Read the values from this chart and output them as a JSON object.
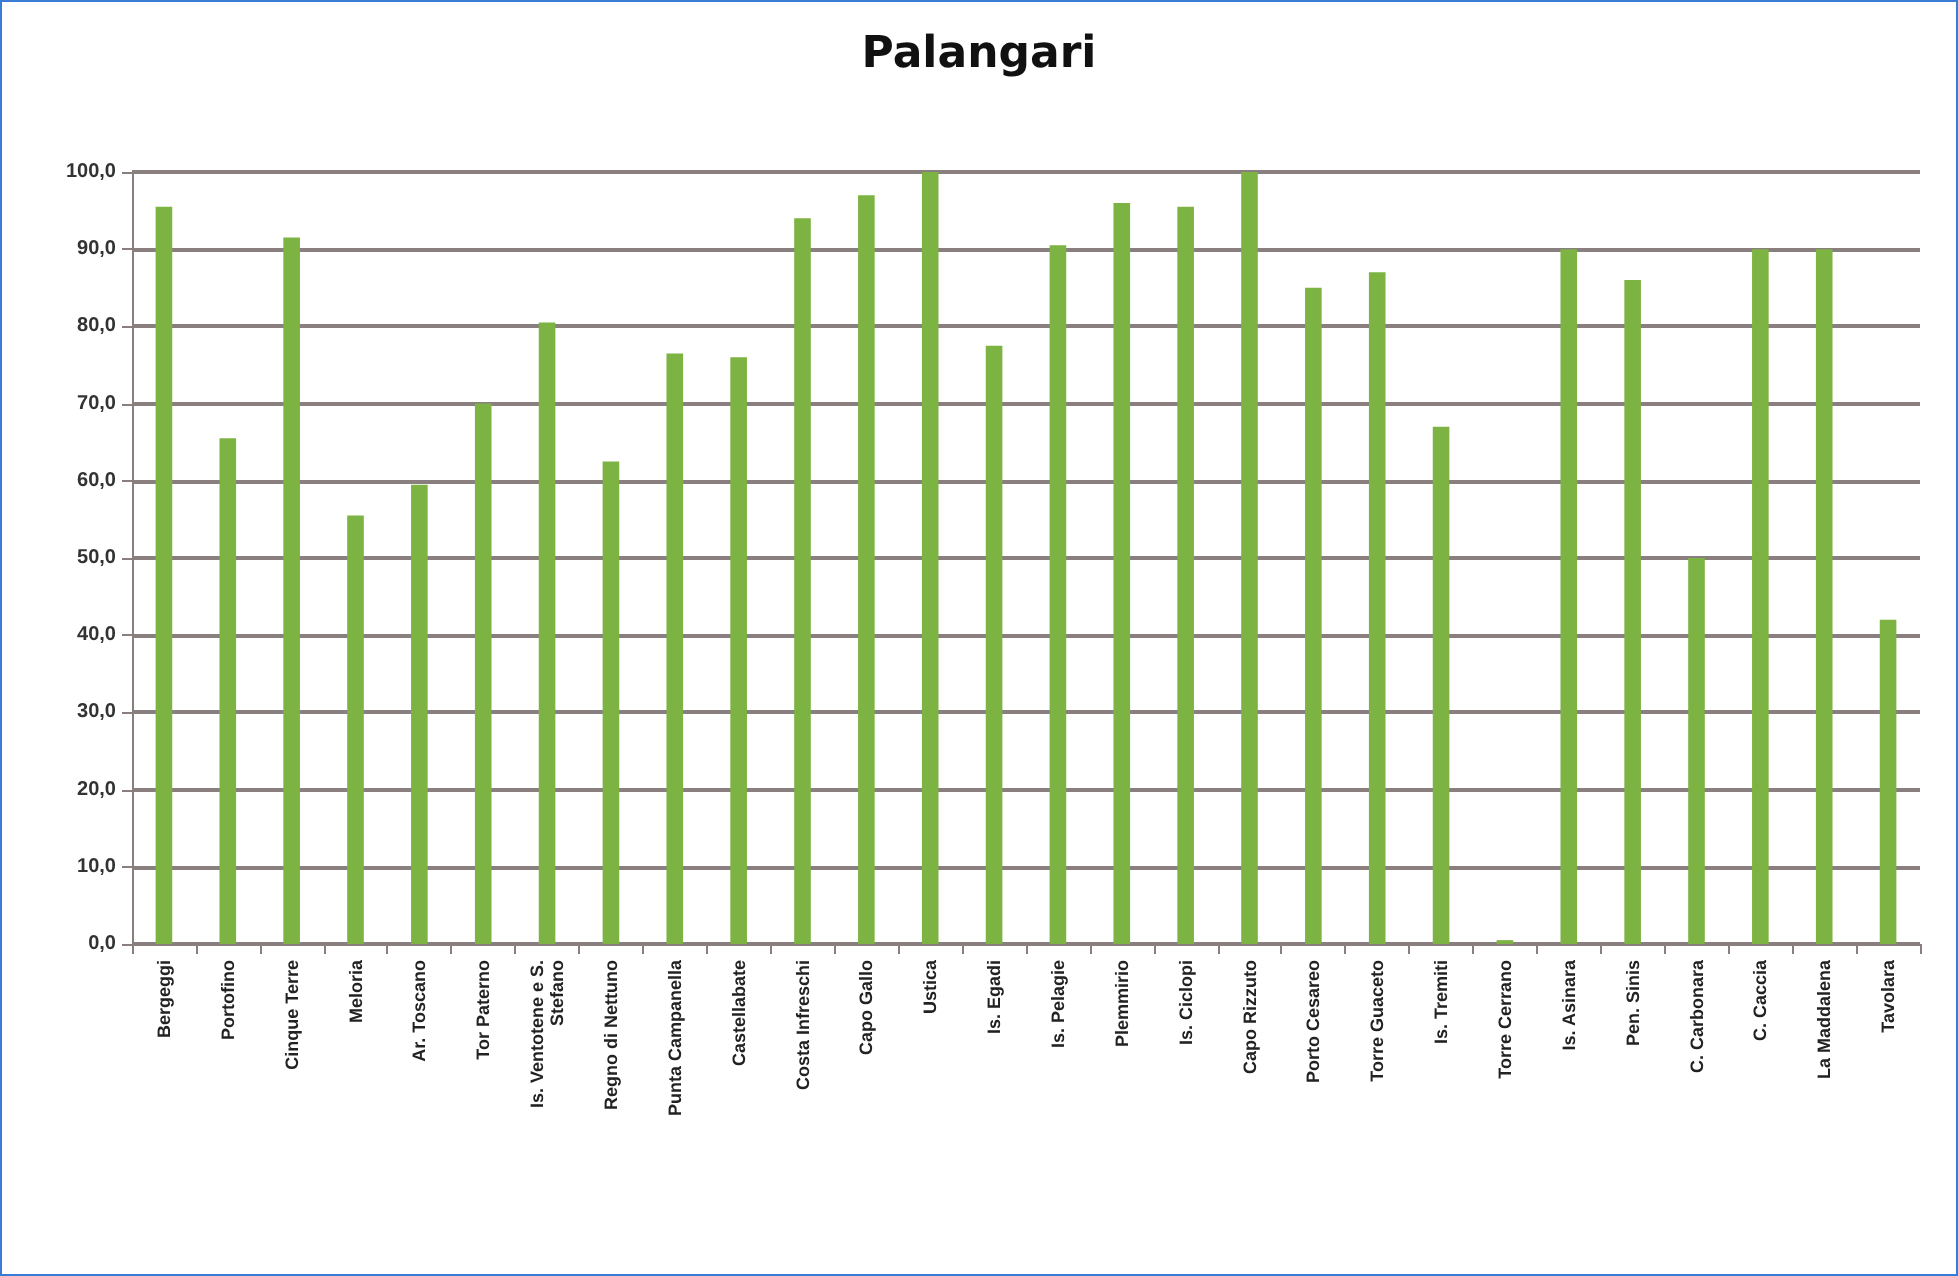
{
  "chart_data": {
    "type": "bar",
    "title": "Palangari",
    "categories": [
      "Bergeggi",
      "Portofino",
      "Cinque Terre",
      "Meloria",
      "Ar. Toscano",
      "Tor Paterno",
      "Is. Ventotene e S. Stefano",
      "Regno di Nettuno",
      "Punta Campanella",
      "Castellabate",
      "Costa Infreschi",
      "Capo Gallo",
      "Ustica",
      "Is. Egadi",
      "Is. Pelagie",
      "Plemmirio",
      "Is. Ciclopi",
      "Capo Rizzuto",
      "Porto Cesareo",
      "Torre Guaceto",
      "Is. Tremiti",
      "Torre Cerrano",
      "Is. Asinara",
      "Pen. Sinis",
      "C. Carbonara",
      "C. Caccia",
      "La Maddalena",
      "Tavolara"
    ],
    "values": [
      95.5,
      65.5,
      91.5,
      55.5,
      59.5,
      70,
      80.5,
      62.5,
      76.5,
      76,
      94,
      97,
      100,
      77.5,
      90.5,
      96,
      95.5,
      100,
      85,
      87,
      67,
      0.5,
      90,
      86,
      50,
      90,
      90,
      42
    ],
    "color": "#7cb342",
    "ylim": [
      0,
      100
    ],
    "yticks": [
      {
        "value": 0,
        "label": "0,0"
      },
      {
        "value": 10,
        "label": "10,0"
      },
      {
        "value": 20,
        "label": "20,0"
      },
      {
        "value": 30,
        "label": "30,0"
      },
      {
        "value": 40,
        "label": "40,0"
      },
      {
        "value": 50,
        "label": "50,0"
      },
      {
        "value": 60,
        "label": "60,0"
      },
      {
        "value": 70,
        "label": "70,0"
      },
      {
        "value": 80,
        "label": "80,0"
      },
      {
        "value": 90,
        "label": "90,0"
      },
      {
        "value": 100,
        "label": "100,0"
      }
    ],
    "grid": true
  }
}
